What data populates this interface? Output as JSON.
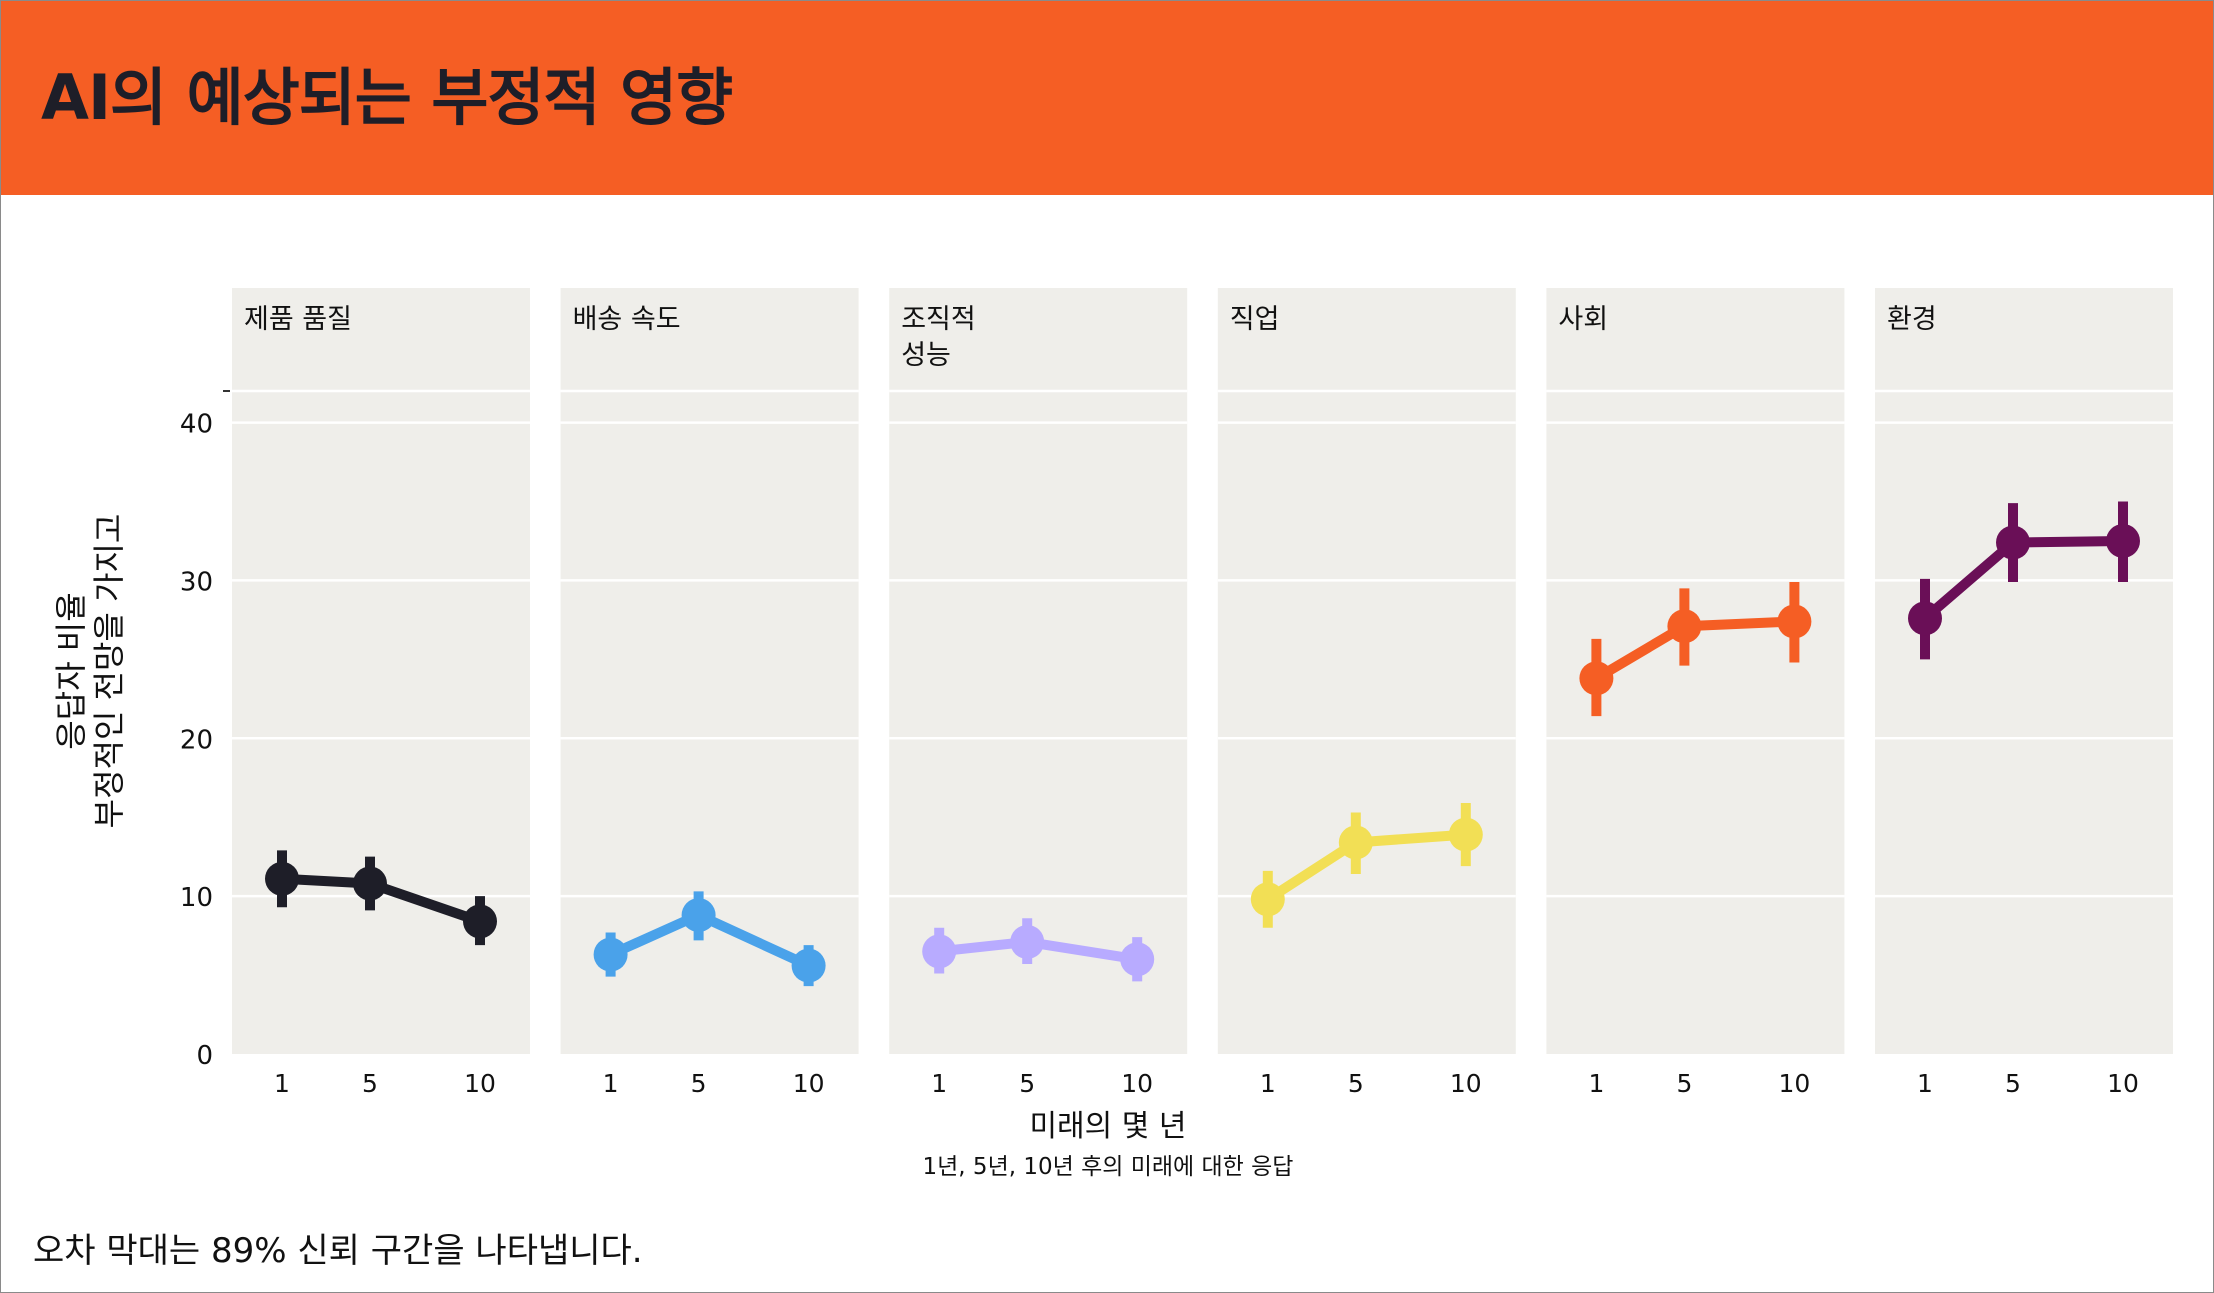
{
  "title": "AI의 예상되는 부정적 영향",
  "footnote": "오차 막대는 89% 신뢰 구간을 나타냅니다.",
  "chart_data": {
    "type": "line",
    "facets": [
      "제품 품질",
      "배송 속도",
      "조직적\n성능",
      "직업",
      "사회",
      "환경"
    ],
    "x": [
      1,
      5,
      10
    ],
    "xticks": [
      "1",
      "5",
      "10"
    ],
    "yticks": [
      "0",
      "10",
      "20",
      "30",
      "40"
    ],
    "ylim": [
      0,
      42
    ],
    "xlabel": "미래의 몇 년",
    "xlabel_sub": "1년, 5년, 10년 후의 미래에 대한 응답",
    "ylabel": "응답자 비율\n부정적인 전망을 가지고",
    "grid": true,
    "series": [
      {
        "color": "#1e1e28",
        "values": [
          11.1,
          10.8,
          8.4
        ],
        "lower": [
          9.3,
          9.1,
          6.9
        ],
        "upper": [
          12.9,
          12.5,
          10.0
        ]
      },
      {
        "color": "#4aa2ea",
        "values": [
          6.3,
          8.8,
          5.6
        ],
        "lower": [
          4.9,
          7.2,
          4.3
        ],
        "upper": [
          7.7,
          10.3,
          6.9
        ]
      },
      {
        "color": "#b8abff",
        "values": [
          6.5,
          7.1,
          6.0
        ],
        "lower": [
          5.1,
          5.7,
          4.6
        ],
        "upper": [
          8.0,
          8.6,
          7.4
        ]
      },
      {
        "color": "#f2df55",
        "values": [
          9.8,
          13.4,
          13.9
        ],
        "lower": [
          8.0,
          11.4,
          11.9
        ],
        "upper": [
          11.6,
          15.3,
          15.9
        ]
      },
      {
        "color": "#f55e24",
        "values": [
          23.8,
          27.1,
          27.4
        ],
        "lower": [
          21.4,
          24.6,
          24.8
        ],
        "upper": [
          26.3,
          29.5,
          29.9
        ]
      },
      {
        "color": "#6a0f57",
        "values": [
          27.6,
          32.4,
          32.5
        ],
        "lower": [
          25.0,
          29.9,
          29.9
        ],
        "upper": [
          30.1,
          34.9,
          35.0
        ]
      }
    ]
  }
}
